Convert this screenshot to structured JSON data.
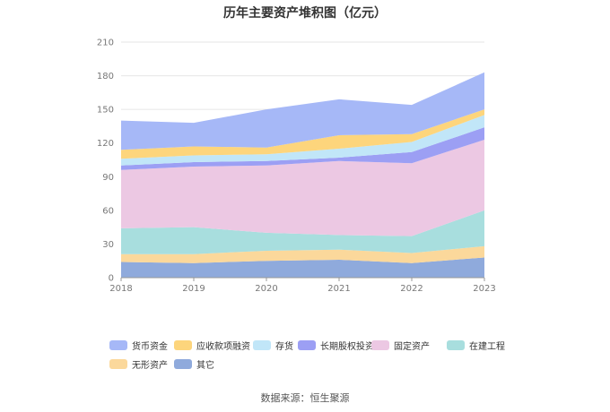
{
  "title": "历年主要资产堆积图（亿元）",
  "source": "数据来源：恒生聚源",
  "chart_data": {
    "type": "area",
    "stacked": true,
    "title": "历年主要资产堆积图（亿元）",
    "categories": [
      "2018",
      "2019",
      "2020",
      "2021",
      "2022",
      "2023"
    ],
    "ylim": [
      0,
      210
    ],
    "yticks": [
      "0",
      "30",
      "60",
      "90",
      "120",
      "150",
      "180",
      "210"
    ],
    "grid": true,
    "legend_position": "bottom",
    "series": [
      {
        "name": "其它",
        "color": "#8faadc",
        "values": [
          14,
          13,
          15,
          16,
          13,
          18
        ]
      },
      {
        "name": "无形资产",
        "color": "#fbd89b",
        "values": [
          7,
          8,
          9,
          9,
          9,
          10
        ]
      },
      {
        "name": "在建工程",
        "color": "#a8dede",
        "values": [
          23,
          24,
          16,
          13,
          15,
          32
        ]
      },
      {
        "name": "固定资产",
        "color": "#ecc8e3",
        "values": [
          52,
          54,
          60,
          66,
          65,
          63
        ]
      },
      {
        "name": "长期股权投资",
        "color": "#9c9ff4",
        "values": [
          4,
          4,
          4,
          3,
          10,
          11
        ]
      },
      {
        "name": "存货",
        "color": "#c1e6f8",
        "values": [
          6,
          6,
          6,
          8,
          9,
          11
        ]
      },
      {
        "name": "应收款项融资",
        "color": "#fdd57c",
        "values": [
          8,
          8,
          6,
          12,
          7,
          5
        ]
      },
      {
        "name": "货币资金",
        "color": "#a6b8f7",
        "values": [
          26,
          21,
          34,
          32,
          26,
          33
        ]
      }
    ],
    "legend_order": [
      "货币资金",
      "应收款项融资",
      "存货",
      "长期股权投资",
      "固定资产",
      "在建工程",
      "无形资产",
      "其它"
    ]
  }
}
